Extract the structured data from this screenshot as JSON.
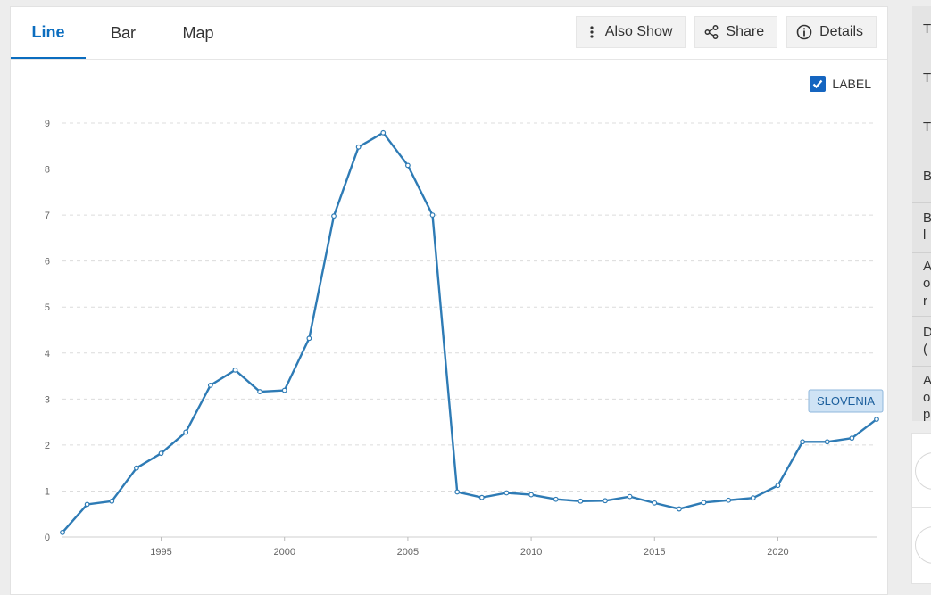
{
  "tabs": [
    {
      "label": "Line",
      "active": true
    },
    {
      "label": "Bar",
      "active": false
    },
    {
      "label": "Map",
      "active": false
    }
  ],
  "actions": {
    "also_show": "Also Show",
    "share": "Share",
    "details": "Details"
  },
  "label_toggle": {
    "label": "LABEL",
    "checked": true
  },
  "side_letters": [
    "T",
    "T",
    "T",
    "B",
    "B",
    "l",
    "A",
    "o",
    "r",
    "D",
    "(",
    "A",
    "o",
    "p"
  ],
  "colors": {
    "accent": "#0b6dbf",
    "line": "#2e7bb5",
    "grid": "#dcdcdc",
    "tag_bg": "#cfe3f5",
    "tag_border": "#8fb7dc"
  },
  "chart_data": {
    "type": "line",
    "title": "",
    "xlabel": "",
    "ylabel": "",
    "xlim": [
      1991,
      2024
    ],
    "ylim": [
      0,
      9
    ],
    "x_ticks": [
      1995,
      2000,
      2005,
      2010,
      2015,
      2020
    ],
    "y_ticks": [
      0,
      1,
      2,
      3,
      4,
      5,
      6,
      7,
      8,
      9
    ],
    "grid": true,
    "series": [
      {
        "name": "SLOVENIA",
        "x": [
          1991,
          1992,
          1993,
          1994,
          1995,
          1996,
          1997,
          1998,
          1999,
          2000,
          2001,
          2002,
          2003,
          2004,
          2005,
          2006,
          2007,
          2008,
          2009,
          2010,
          2011,
          2012,
          2013,
          2014,
          2015,
          2016,
          2017,
          2018,
          2019,
          2020,
          2021,
          2022,
          2023,
          2024
        ],
        "values": [
          0.1,
          0.71,
          0.78,
          1.5,
          1.82,
          2.28,
          3.3,
          3.63,
          3.16,
          3.19,
          4.32,
          6.98,
          8.48,
          8.79,
          8.08,
          7.0,
          0.98,
          0.86,
          0.96,
          0.92,
          0.82,
          0.78,
          0.79,
          0.88,
          0.74,
          0.61,
          0.75,
          0.8,
          0.85,
          1.12,
          2.07,
          2.07,
          2.15,
          2.56
        ]
      }
    ]
  }
}
